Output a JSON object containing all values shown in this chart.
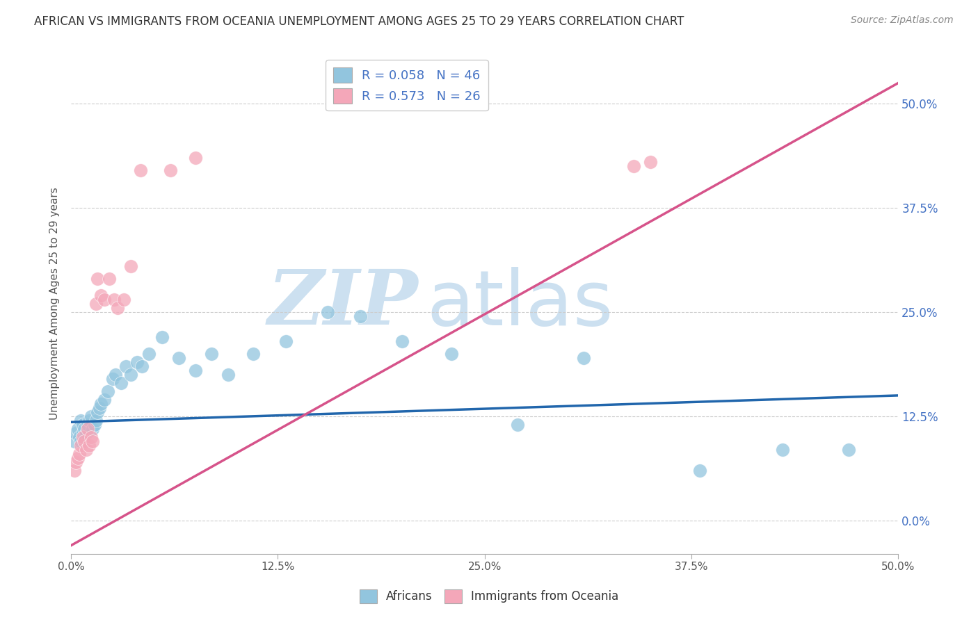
{
  "title": "AFRICAN VS IMMIGRANTS FROM OCEANIA UNEMPLOYMENT AMONG AGES 25 TO 29 YEARS CORRELATION CHART",
  "source": "Source: ZipAtlas.com",
  "ylabel": "Unemployment Among Ages 25 to 29 years",
  "xlim": [
    0,
    0.5
  ],
  "ylim": [
    -0.04,
    0.56
  ],
  "xticks": [
    0.0,
    0.125,
    0.25,
    0.375,
    0.5
  ],
  "yticks": [
    0.0,
    0.125,
    0.25,
    0.375,
    0.5
  ],
  "africans_x": [
    0.002,
    0.003,
    0.004,
    0.005,
    0.006,
    0.006,
    0.007,
    0.007,
    0.008,
    0.008,
    0.009,
    0.01,
    0.011,
    0.012,
    0.013,
    0.014,
    0.015,
    0.016,
    0.017,
    0.018,
    0.02,
    0.022,
    0.025,
    0.027,
    0.03,
    0.033,
    0.036,
    0.04,
    0.043,
    0.047,
    0.055,
    0.065,
    0.075,
    0.085,
    0.095,
    0.11,
    0.13,
    0.155,
    0.175,
    0.2,
    0.23,
    0.27,
    0.31,
    0.38,
    0.43,
    0.47
  ],
  "africans_y": [
    0.095,
    0.105,
    0.11,
    0.1,
    0.095,
    0.12,
    0.105,
    0.115,
    0.1,
    0.11,
    0.105,
    0.115,
    0.12,
    0.125,
    0.11,
    0.115,
    0.12,
    0.13,
    0.135,
    0.14,
    0.145,
    0.155,
    0.17,
    0.175,
    0.165,
    0.185,
    0.175,
    0.19,
    0.185,
    0.2,
    0.22,
    0.195,
    0.18,
    0.2,
    0.175,
    0.2,
    0.215,
    0.25,
    0.245,
    0.215,
    0.2,
    0.115,
    0.195,
    0.06,
    0.085,
    0.085
  ],
  "oceania_x": [
    0.002,
    0.003,
    0.004,
    0.005,
    0.006,
    0.007,
    0.008,
    0.009,
    0.01,
    0.011,
    0.012,
    0.013,
    0.015,
    0.016,
    0.018,
    0.02,
    0.023,
    0.026,
    0.028,
    0.032,
    0.036,
    0.042,
    0.06,
    0.075,
    0.34,
    0.35
  ],
  "oceania_y": [
    0.06,
    0.07,
    0.075,
    0.08,
    0.09,
    0.1,
    0.095,
    0.085,
    0.11,
    0.09,
    0.1,
    0.095,
    0.26,
    0.29,
    0.27,
    0.265,
    0.29,
    0.265,
    0.255,
    0.265,
    0.305,
    0.42,
    0.42,
    0.435,
    0.425,
    0.43
  ],
  "africans_color": "#92c5de",
  "oceania_color": "#f4a7b9",
  "africans_line_color": "#2166ac",
  "oceania_line_color": "#d6538a",
  "africans_R": 0.058,
  "africans_N": 46,
  "oceania_R": 0.573,
  "oceania_N": 26,
  "legend_africans": "Africans",
  "legend_oceania": "Immigrants from Oceania",
  "title_color": "#333333",
  "axis_label_color": "#555555",
  "tick_color_right": "#4472c4",
  "grid_color": "#cccccc",
  "watermark_zip": "ZIP",
  "watermark_atlas": "atlas",
  "watermark_color": "#cce0f0",
  "background_color": "#ffffff"
}
